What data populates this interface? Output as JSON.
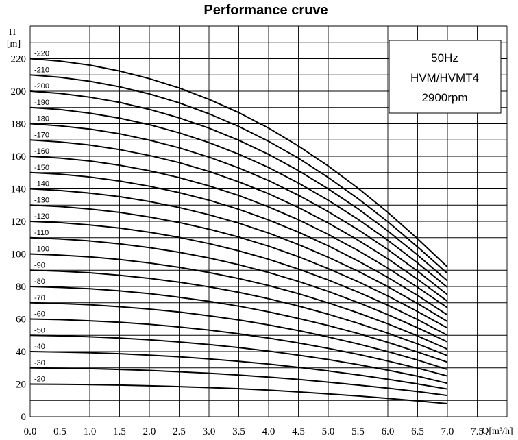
{
  "chart_data": {
    "type": "line",
    "title": "Performance cruve",
    "ylabel_name": "H",
    "ylabel_unit": "[m]",
    "xlabel": "Q[m³/h]",
    "xlim": [
      0,
      8
    ],
    "ylim": [
      0,
      240
    ],
    "x_ticks": [
      "0.0",
      "0.5",
      "1.0",
      "1.5",
      "2.0",
      "2.5",
      "3.0",
      "3.5",
      "4.0",
      "4.5",
      "5.0",
      "5.5",
      "6.0",
      "6.5",
      "7.0",
      "7.5"
    ],
    "y_ticks": [
      "0",
      "20",
      "40",
      "60",
      "80",
      "100",
      "120",
      "140",
      "160",
      "180",
      "200",
      "220"
    ],
    "grid": true,
    "info_box": [
      "50Hz",
      "HVM/HVMT4",
      "2900rpm"
    ],
    "x": [
      0,
      0.5,
      1.0,
      1.5,
      2.0,
      2.5,
      3.0,
      3.5,
      4.0,
      4.5,
      5.0,
      5.5,
      6.0,
      6.5,
      7.0
    ],
    "series": [
      {
        "name": "-20",
        "values": [
          20,
          19.9,
          19.7,
          19.4,
          19.0,
          18.5,
          17.9,
          17.2,
          16.3,
          15.2,
          14.0,
          12.7,
          11.3,
          9.7,
          8.0
        ]
      },
      {
        "name": "-30",
        "values": [
          30,
          29.8,
          29.5,
          29.0,
          28.4,
          27.6,
          26.7,
          25.6,
          24.3,
          22.9,
          21.2,
          19.4,
          17.5,
          15.4,
          13.0
        ]
      },
      {
        "name": "-40",
        "values": [
          40,
          39.7,
          39.3,
          38.7,
          37.8,
          36.8,
          35.5,
          34.0,
          32.3,
          30.3,
          28.1,
          25.7,
          23.0,
          20.1,
          17.0
        ]
      },
      {
        "name": "-50",
        "values": [
          50,
          49.7,
          49.1,
          48.3,
          47.3,
          45.9,
          44.3,
          42.5,
          40.3,
          37.8,
          35.1,
          32.0,
          28.6,
          24.9,
          20.5
        ]
      },
      {
        "name": "-60",
        "values": [
          60,
          59.6,
          58.9,
          58.0,
          56.7,
          55.1,
          53.2,
          50.9,
          48.3,
          45.3,
          42.0,
          38.3,
          34.2,
          29.8,
          25.0
        ]
      },
      {
        "name": "-70",
        "values": [
          70,
          69.5,
          68.8,
          67.6,
          66.1,
          64.3,
          62.0,
          59.4,
          56.4,
          52.9,
          49.0,
          44.7,
          40.0,
          34.8,
          29.0
        ]
      },
      {
        "name": "-80",
        "values": [
          80,
          79.4,
          78.6,
          77.3,
          75.6,
          73.4,
          70.9,
          67.9,
          64.4,
          60.4,
          56.0,
          51.1,
          45.7,
          39.7,
          33.5
        ]
      },
      {
        "name": "-90",
        "values": [
          90,
          89.4,
          88.4,
          86.9,
          85.0,
          82.6,
          79.8,
          76.4,
          72.5,
          68.0,
          63.0,
          57.4,
          51.3,
          44.7,
          37.5
        ]
      },
      {
        "name": "-100",
        "values": [
          100,
          99.3,
          98.2,
          96.6,
          94.4,
          91.8,
          88.6,
          84.9,
          80.6,
          75.6,
          70.0,
          63.8,
          57.0,
          49.6,
          41.5
        ]
      },
      {
        "name": "-110",
        "values": [
          110,
          109.2,
          108.0,
          106.2,
          103.9,
          101.0,
          97.5,
          93.4,
          88.6,
          83.1,
          77.0,
          70.2,
          62.7,
          54.6,
          46.0
        ]
      },
      {
        "name": "-120",
        "values": [
          120,
          119.2,
          117.8,
          115.9,
          113.3,
          110.2,
          106.4,
          101.9,
          96.7,
          90.7,
          84.0,
          76.6,
          68.5,
          59.6,
          50.0
        ]
      },
      {
        "name": "-130",
        "values": [
          130,
          129.1,
          127.6,
          125.5,
          122.7,
          119.3,
          115.2,
          110.4,
          104.8,
          98.3,
          91.0,
          83.0,
          74.2,
          64.6,
          54.5
        ]
      },
      {
        "name": "-140",
        "values": [
          140,
          139.0,
          137.4,
          135.2,
          132.2,
          128.5,
          124.1,
          118.9,
          112.8,
          105.8,
          98.0,
          89.4,
          79.9,
          69.5,
          58.5
        ]
      },
      {
        "name": "-150",
        "values": [
          150,
          149.0,
          147.3,
          144.8,
          141.6,
          137.7,
          133.0,
          127.4,
          120.9,
          113.4,
          105.0,
          95.7,
          85.6,
          74.5,
          62.5
        ]
      },
      {
        "name": "-160",
        "values": [
          160,
          158.9,
          157.1,
          154.5,
          151.1,
          146.9,
          141.8,
          135.9,
          128.9,
          121.0,
          112.0,
          102.1,
          91.3,
          79.5,
          67.0
        ]
      },
      {
        "name": "-170",
        "values": [
          170,
          168.8,
          166.9,
          164.1,
          160.5,
          156.1,
          150.7,
          144.3,
          137.0,
          128.5,
          119.0,
          108.5,
          97.0,
          84.4,
          71.0
        ]
      },
      {
        "name": "-180",
        "values": [
          180,
          178.7,
          176.7,
          173.8,
          169.9,
          165.2,
          159.5,
          152.8,
          145.1,
          136.1,
          126.0,
          114.9,
          102.7,
          89.4,
          75.0
        ]
      },
      {
        "name": "-190",
        "values": [
          190,
          188.7,
          186.5,
          183.4,
          179.4,
          174.4,
          168.4,
          161.3,
          153.1,
          143.6,
          133.0,
          121.3,
          108.4,
          94.4,
          79.5
        ]
      },
      {
        "name": "-200",
        "values": [
          200,
          198.6,
          196.3,
          193.1,
          188.8,
          183.6,
          177.3,
          169.8,
          161.2,
          151.2,
          140.0,
          127.7,
          114.1,
          99.3,
          83.5
        ]
      },
      {
        "name": "-210",
        "values": [
          210,
          208.5,
          206.1,
          202.7,
          198.3,
          192.8,
          186.1,
          178.3,
          169.2,
          158.8,
          147.0,
          134.0,
          119.8,
          104.3,
          88.0
        ]
      },
      {
        "name": "-220",
        "values": [
          220,
          218.5,
          216.0,
          212.4,
          207.7,
          202.0,
          195.0,
          186.8,
          177.3,
          166.3,
          154.0,
          140.4,
          125.5,
          109.3,
          92.0
        ]
      }
    ]
  }
}
